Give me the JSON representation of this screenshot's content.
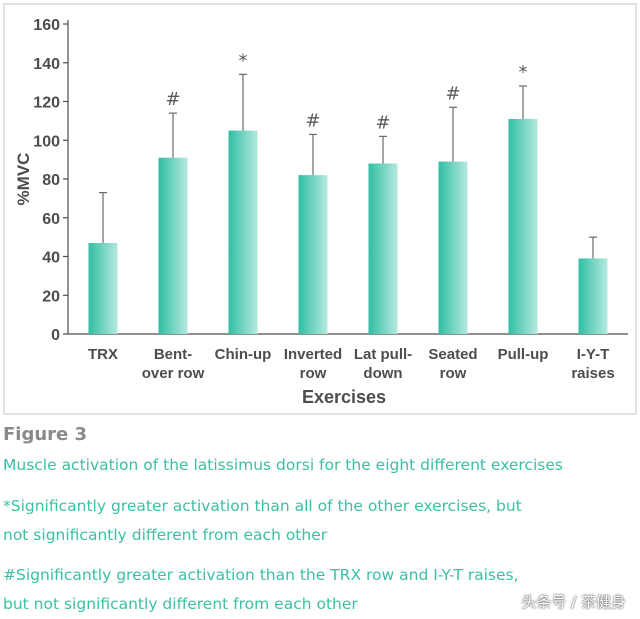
{
  "chart_data": {
    "type": "bar",
    "ylabel": "%MVC",
    "xlabel": "Exercises",
    "ylim": [
      0,
      160
    ],
    "yticks": [
      0,
      20,
      40,
      60,
      80,
      100,
      120,
      140,
      160
    ],
    "grid": false,
    "categories": [
      "TRX",
      "Bent- over row",
      "Chin-up",
      "Inverted row",
      "Lat pull- down",
      "Seated row",
      "Pull-up",
      "I-Y-T raises"
    ],
    "category_lines": [
      [
        "TRX"
      ],
      [
        "Bent-",
        "over row"
      ],
      [
        "Chin-up"
      ],
      [
        "Inverted",
        "row"
      ],
      [
        "Lat pull-",
        "down"
      ],
      [
        "Seated",
        "row"
      ],
      [
        "Pull-up"
      ],
      [
        "I-Y-T",
        "raises"
      ]
    ],
    "values": [
      47,
      91,
      105,
      82,
      88,
      89,
      111,
      39
    ],
    "error_upper": [
      73,
      114,
      134,
      103,
      102,
      117,
      128,
      50
    ],
    "markers": [
      "",
      "#",
      "*",
      "#",
      "#",
      "#",
      "*",
      ""
    ],
    "colors": {
      "bar_gradient": [
        "#30bfa3",
        "#b6e8df"
      ],
      "axis": "#4d4d4d",
      "frame": "#cfcfcf",
      "text": "#4d4d4d"
    }
  },
  "figure": {
    "label": "Figure 3",
    "caption": "Muscle activation of the latissimus dorsi for the eight different exercises",
    "note_star": "*Significantly greater activation than all of the other exercises, but\nnot significantly different from each other",
    "note_hash": "#Significantly greater activation than the TRX row and I-Y-T raises,\nbut not significantly different from each other"
  },
  "watermark": "头条号 / 茶健身"
}
